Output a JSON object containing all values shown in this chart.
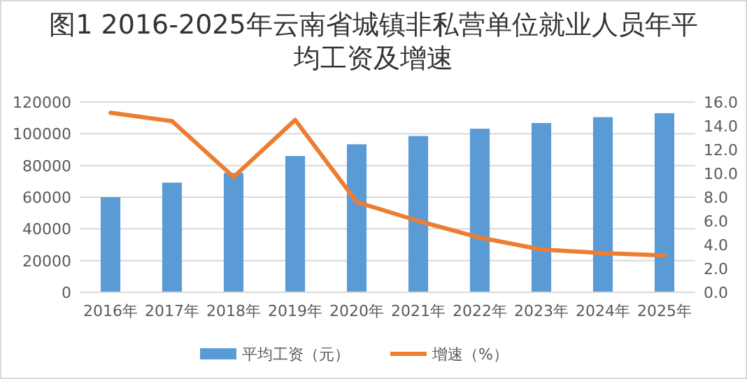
{
  "chart_data": {
    "type": "bar",
    "title": "图1 2016-2025年云南省城镇非私营单位就业人员年平均工资及增速",
    "categories": [
      "2016年",
      "2017年",
      "2018年",
      "2019年",
      "2020年",
      "2021年",
      "2022年",
      "2023年",
      "2024年",
      "2025年"
    ],
    "series": [
      {
        "name": "平均工资（元）",
        "color": "#5b9bd5",
        "values": [
          60000,
          69200,
          75300,
          86000,
          93400,
          98600,
          103200,
          106800,
          110500,
          113000
        ]
      },
      {
        "name": "增速（%）",
        "type": "line",
        "axis": "y2",
        "color": "#ed7d31",
        "values": [
          15.1,
          14.4,
          9.7,
          14.5,
          7.6,
          6.0,
          4.6,
          3.6,
          3.3,
          3.1
        ]
      }
    ],
    "ylim": [
      0,
      120000
    ],
    "yticks": [
      0,
      20000,
      40000,
      60000,
      80000,
      100000,
      120000
    ],
    "y2lim": [
      0,
      16
    ],
    "y2ticks": [
      {
        "value": 0,
        "label": "0.0"
      },
      {
        "value": 2,
        "label": "2.0"
      },
      {
        "value": 4,
        "label": "4.0"
      },
      {
        "value": 6,
        "label": "6.0"
      },
      {
        "value": 8,
        "label": "8.0"
      },
      {
        "value": 10,
        "label": "10.0"
      },
      {
        "value": 12,
        "label": "12.0"
      },
      {
        "value": 14,
        "label": "14.0"
      },
      {
        "value": 16,
        "label": "16.0"
      }
    ],
    "grid": "y",
    "legend": "bottom",
    "marker": "none"
  }
}
